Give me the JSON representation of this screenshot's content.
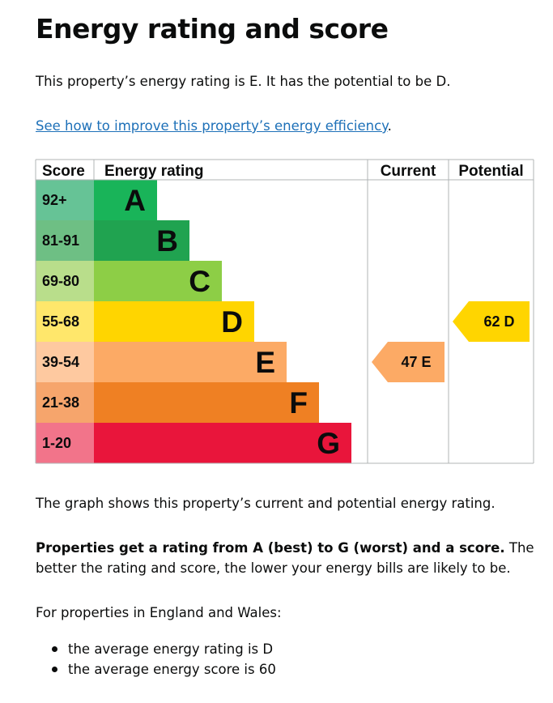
{
  "page": {
    "title": "Energy rating and score",
    "intro": "This property’s energy rating is E. It has the potential to be D.",
    "improve_link": "See how to improve this property’s energy efficiency",
    "improve_link_suffix": ".",
    "graph_caption": "The graph shows this property’s current and potential energy rating.",
    "rating_bold": "Properties get a rating from A (best) to G (worst) and a score.",
    "rating_rest": " The better the rating and score, the lower your energy bills are likely to be.",
    "nations_intro": "For properties in England and Wales:",
    "bullets": [
      "the average energy rating is D",
      "the average energy score is 60"
    ]
  },
  "chart_data": {
    "type": "bar",
    "headers": {
      "score": "Score",
      "rating": "Energy rating",
      "current": "Current",
      "potential": "Potential"
    },
    "bands": [
      {
        "letter": "A",
        "range": "92+",
        "bar_color": "#19b459",
        "score_color": "#66c396"
      },
      {
        "letter": "B",
        "range": "81-91",
        "bar_color": "#20a350",
        "score_color": "#6ebf84"
      },
      {
        "letter": "C",
        "range": "69-80",
        "bar_color": "#8dce46",
        "score_color": "#b9de8b"
      },
      {
        "letter": "D",
        "range": "55-68",
        "bar_color": "#ffd500",
        "score_color": "#ffe76b"
      },
      {
        "letter": "E",
        "range": "39-54",
        "bar_color": "#fcaa65",
        "score_color": "#fec9a0"
      },
      {
        "letter": "F",
        "range": "21-38",
        "bar_color": "#ef8023",
        "score_color": "#f6a56c"
      },
      {
        "letter": "G",
        "range": "1-20",
        "bar_color": "#e9153b",
        "score_color": "#f2748a"
      }
    ],
    "current": {
      "score": 47,
      "letter": "E",
      "label": "47 E",
      "color": "#fcaa65"
    },
    "potential": {
      "score": 62,
      "letter": "D",
      "label": "62 D",
      "color": "#ffd500"
    }
  }
}
